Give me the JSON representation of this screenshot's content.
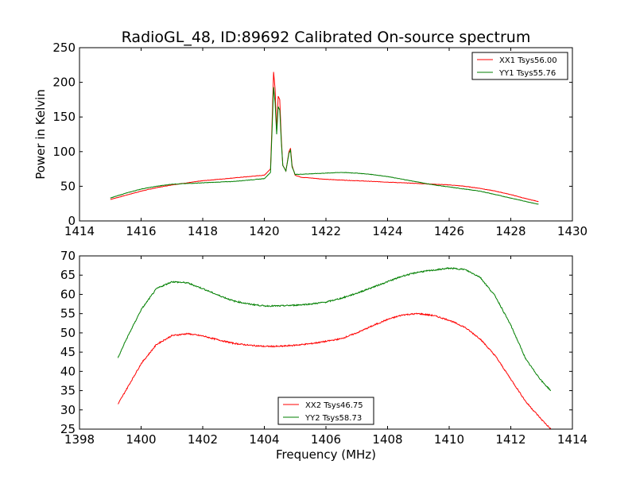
{
  "figure_title": "RadioGL_48, ID:89692 Calibrated On-source spectrum",
  "chart_data": [
    {
      "type": "line",
      "title": "RadioGL_48, ID:89692 Calibrated On-source spectrum",
      "xlabel": "",
      "ylabel": "Power in Kelvin",
      "xlim": [
        1414,
        1430
      ],
      "ylim": [
        0,
        250
      ],
      "xticks": [
        "1414",
        "1416",
        "1418",
        "1420",
        "1422",
        "1424",
        "1426",
        "1428",
        "1430"
      ],
      "yticks": [
        "0",
        "50",
        "100",
        "150",
        "200",
        "250"
      ],
      "legend_position": "top-right",
      "series": [
        {
          "name": "XX1 Tsys56.00",
          "color": "#ff0000",
          "x": [
            1415.0,
            1415.5,
            1416.0,
            1416.5,
            1417.0,
            1417.5,
            1418.0,
            1418.5,
            1419.0,
            1419.5,
            1420.0,
            1420.2,
            1420.25,
            1420.3,
            1420.35,
            1420.4,
            1420.45,
            1420.5,
            1420.55,
            1420.6,
            1420.7,
            1420.8,
            1420.85,
            1420.9,
            1421.0,
            1421.2,
            1421.5,
            1422.0,
            1422.5,
            1423.0,
            1423.5,
            1424.0,
            1424.5,
            1425.0,
            1425.5,
            1426.0,
            1426.5,
            1427.0,
            1427.5,
            1428.0,
            1428.5,
            1428.9
          ],
          "y": [
            31,
            37,
            43,
            48,
            52,
            55,
            58,
            60,
            62,
            64,
            66,
            75,
            140,
            215,
            190,
            130,
            180,
            175,
            120,
            80,
            72,
            100,
            105,
            80,
            66,
            63,
            62,
            60,
            59,
            58,
            57,
            56,
            55,
            54,
            53,
            52,
            50,
            47,
            43,
            38,
            32,
            28
          ]
        },
        {
          "name": "YY1 Tsys55.76",
          "color": "#007f00",
          "x": [
            1415.0,
            1415.5,
            1416.0,
            1416.5,
            1417.0,
            1417.5,
            1418.0,
            1418.5,
            1419.0,
            1419.5,
            1420.0,
            1420.2,
            1420.25,
            1420.3,
            1420.35,
            1420.4,
            1420.45,
            1420.5,
            1420.55,
            1420.6,
            1420.7,
            1420.8,
            1420.85,
            1420.9,
            1421.0,
            1421.5,
            1422.0,
            1422.5,
            1423.0,
            1423.5,
            1424.0,
            1424.5,
            1425.0,
            1425.5,
            1426.0,
            1426.5,
            1427.0,
            1427.5,
            1428.0,
            1428.5,
            1428.9
          ],
          "y": [
            33,
            40,
            46,
            50,
            53,
            54,
            55,
            56,
            57,
            59,
            61,
            70,
            130,
            193,
            170,
            125,
            165,
            160,
            115,
            80,
            72,
            98,
            102,
            78,
            67,
            68,
            69,
            70,
            69,
            67,
            64,
            60,
            56,
            52,
            49,
            46,
            43,
            38,
            33,
            28,
            24
          ]
        }
      ]
    },
    {
      "type": "line",
      "title": "",
      "xlabel": "Frequency (MHz)",
      "ylabel": "",
      "xlim": [
        1398,
        1414
      ],
      "ylim": [
        25,
        70
      ],
      "xticks": [
        "1398",
        "1400",
        "1402",
        "1404",
        "1406",
        "1408",
        "1410",
        "1412",
        "1414"
      ],
      "yticks": [
        "25",
        "30",
        "35",
        "40",
        "45",
        "50",
        "55",
        "60",
        "65",
        "70"
      ],
      "legend_position": "lower-center",
      "series": [
        {
          "name": "XX2 Tsys46.75",
          "color": "#ff0000",
          "x": [
            1399.25,
            1399.5,
            1400.0,
            1400.5,
            1401.0,
            1401.5,
            1402.0,
            1402.5,
            1403.0,
            1403.5,
            1404.0,
            1404.5,
            1405.0,
            1405.5,
            1406.0,
            1406.5,
            1407.0,
            1407.5,
            1408.0,
            1408.5,
            1409.0,
            1409.5,
            1410.0,
            1410.5,
            1411.0,
            1411.5,
            1412.0,
            1412.5,
            1413.0,
            1413.3
          ],
          "y": [
            31.5,
            35,
            42,
            47,
            49.3,
            49.8,
            49.2,
            48.2,
            47.3,
            46.8,
            46.5,
            46.5,
            46.8,
            47.2,
            47.8,
            48.5,
            50,
            51.8,
            53.5,
            54.7,
            55,
            54.5,
            53.3,
            51.5,
            48.5,
            44,
            38,
            32,
            27.5,
            25
          ]
        },
        {
          "name": "YY2 Tsys58.73",
          "color": "#007f00",
          "x": [
            1399.25,
            1399.5,
            1400.0,
            1400.5,
            1401.0,
            1401.5,
            1402.0,
            1402.5,
            1403.0,
            1403.5,
            1404.0,
            1404.5,
            1405.0,
            1405.5,
            1406.0,
            1406.5,
            1407.0,
            1407.5,
            1408.0,
            1408.5,
            1409.0,
            1409.5,
            1410.0,
            1410.5,
            1411.0,
            1411.5,
            1412.0,
            1412.5,
            1413.0,
            1413.3
          ],
          "y": [
            43.5,
            48,
            56,
            61.5,
            63.3,
            63,
            61.5,
            59.8,
            58.3,
            57.5,
            57,
            57,
            57.2,
            57.5,
            58,
            59,
            60.3,
            61.8,
            63.3,
            64.8,
            65.8,
            66.3,
            66.8,
            66.5,
            64.5,
            59.5,
            52,
            43,
            37.5,
            35
          ]
        }
      ]
    }
  ]
}
